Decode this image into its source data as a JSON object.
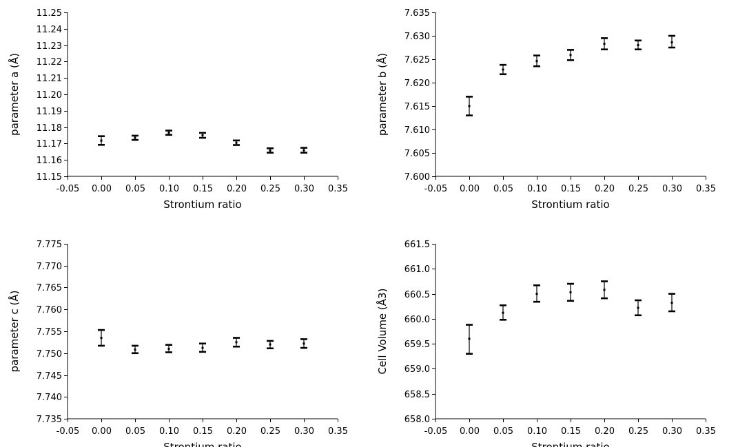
{
  "chart_data": [
    {
      "type": "scatter",
      "title": "",
      "xlabel": "Strontium ratio",
      "ylabel": "parameter a (Å)",
      "xlim": [
        -0.05,
        0.35
      ],
      "ylim": [
        11.15,
        11.25
      ],
      "x_step": 0.05,
      "y_step": 0.01,
      "x_decimals": 2,
      "y_decimals": 2,
      "grid": false,
      "series": [
        {
          "x": [
            0.0,
            0.05,
            0.1,
            0.15,
            0.2,
            0.25,
            0.3
          ],
          "y": [
            11.1718,
            11.1735,
            11.1766,
            11.175,
            11.1705,
            11.1657,
            11.1659
          ],
          "y_low": [
            11.1692,
            11.1722,
            11.1753,
            11.1735,
            11.1691,
            11.1644,
            11.1644
          ],
          "y_high": [
            11.1745,
            11.1748,
            11.1779,
            11.1765,
            11.1719,
            11.1671,
            11.1674
          ]
        }
      ]
    },
    {
      "type": "scatter",
      "title": "",
      "xlabel": "Strontium ratio",
      "ylabel": "parameter b (Å)",
      "xlim": [
        -0.05,
        0.35
      ],
      "ylim": [
        7.6,
        7.635
      ],
      "x_step": 0.05,
      "y_step": 0.005,
      "x_decimals": 2,
      "y_decimals": 3,
      "grid": false,
      "series": [
        {
          "x": [
            0.0,
            0.05,
            0.1,
            0.15,
            0.2,
            0.25,
            0.3
          ],
          "y": [
            7.615,
            7.6228,
            7.6246,
            7.6259,
            7.6283,
            7.628,
            7.6286
          ],
          "y_low": [
            7.613,
            7.6218,
            7.6235,
            7.6248,
            7.6271,
            7.6271,
            7.6275
          ],
          "y_high": [
            7.617,
            7.6238,
            7.6258,
            7.627,
            7.6295,
            7.629,
            7.63
          ]
        }
      ]
    },
    {
      "type": "scatter",
      "title": "",
      "xlabel": "Strontium ratio",
      "ylabel": "parameter c (Å)",
      "xlim": [
        -0.05,
        0.35
      ],
      "ylim": [
        7.735,
        7.775
      ],
      "x_step": 0.05,
      "y_step": 0.005,
      "x_decimals": 2,
      "y_decimals": 3,
      "grid": false,
      "series": [
        {
          "x": [
            0.0,
            0.05,
            0.1,
            0.15,
            0.2,
            0.25,
            0.3
          ],
          "y": [
            7.7535,
            7.7508,
            7.751,
            7.7512,
            7.7525,
            7.752,
            7.7522
          ],
          "y_low": [
            7.7517,
            7.75,
            7.7502,
            7.7503,
            7.7515,
            7.7511,
            7.7512
          ],
          "y_high": [
            7.7553,
            7.7517,
            7.7519,
            7.7522,
            7.7535,
            7.7528,
            7.7532
          ]
        }
      ]
    },
    {
      "type": "scatter",
      "title": "",
      "xlabel": "Strontium ratio",
      "ylabel": "Cell Volume (Å3)",
      "xlim": [
        -0.05,
        0.35
      ],
      "ylim": [
        658.0,
        661.5
      ],
      "x_step": 0.05,
      "y_step": 0.5,
      "x_decimals": 2,
      "y_decimals": 1,
      "grid": false,
      "series": [
        {
          "x": [
            0.0,
            0.05,
            0.1,
            0.15,
            0.2,
            0.25,
            0.3
          ],
          "y": [
            659.6,
            660.12,
            660.5,
            660.53,
            660.58,
            660.22,
            660.32
          ],
          "y_low": [
            659.3,
            659.98,
            660.34,
            660.36,
            660.41,
            660.07,
            660.15
          ],
          "y_high": [
            659.88,
            660.27,
            660.67,
            660.7,
            660.75,
            660.37,
            660.5
          ]
        }
      ]
    }
  ]
}
